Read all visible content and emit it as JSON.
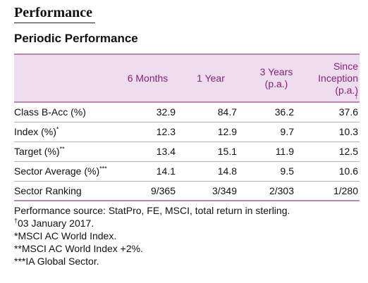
{
  "doc_title": "Performance",
  "section_title": "Periodic Performance",
  "table": {
    "headers": {
      "label": "",
      "six_months": "6 Months",
      "one_year": "1 Year",
      "three_years_line1": "3 Years",
      "three_years_line2": "(p.a.)",
      "since_line1": "Since",
      "since_line2": "Inception",
      "since_line3": "(p.a.)",
      "since_mark": "†"
    },
    "rows": [
      {
        "label": "Class B-Acc (%)",
        "label_mark": "",
        "six_months": "32.9",
        "one_year": "84.7",
        "three_years": "36.2",
        "since_inception": "37.6"
      },
      {
        "label": "Index (%)",
        "label_mark": "*",
        "six_months": "12.3",
        "one_year": "12.9",
        "three_years": "9.7",
        "since_inception": "10.3"
      },
      {
        "label": "Target (%)",
        "label_mark": "**",
        "six_months": "13.4",
        "one_year": "15.1",
        "three_years": "11.9",
        "since_inception": "12.5"
      },
      {
        "label": "Sector Average (%)",
        "label_mark": "***",
        "six_months": "14.1",
        "one_year": "14.8",
        "three_years": "9.5",
        "since_inception": "10.6"
      },
      {
        "label": "Sector Ranking",
        "label_mark": "",
        "six_months": "9/365",
        "one_year": "3/349",
        "three_years": "2/303",
        "since_inception": "1/280"
      }
    ]
  },
  "notes": {
    "source": "Performance source: StatPro, FE, MSCI, total return in sterling.",
    "dagger_mark": "†",
    "inception_date": "03 January 2017.",
    "index_note": "*MSCI AC World Index.",
    "target_note": "**MSCI AC World Index +2%.",
    "sector_note": "***IA Global Sector."
  }
}
